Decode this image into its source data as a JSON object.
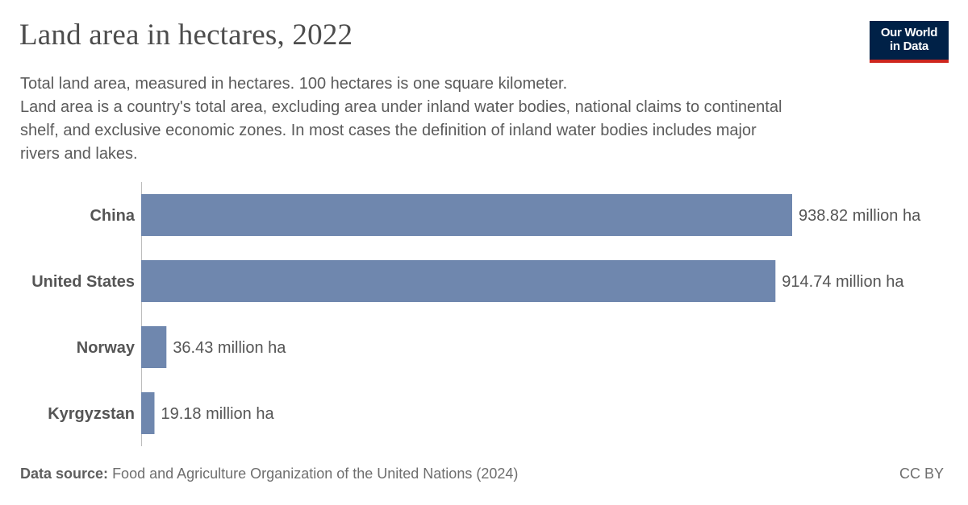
{
  "header": {
    "title": "Land area in hectares, 2022",
    "subtitle_lines": [
      "Total land area, measured in hectares. 100 hectares is one square kilometer.",
      "Land area is a country's total area, excluding area under inland water bodies, national claims to continental",
      "shelf, and exclusive economic zones. In most cases the definition of inland water bodies includes major",
      "rivers and lakes."
    ]
  },
  "logo": {
    "line1": "Our World",
    "line2": "in Data",
    "background": "#002147",
    "accent": "#ce261e"
  },
  "chart_data": {
    "type": "bar",
    "orientation": "horizontal",
    "categories": [
      "China",
      "United States",
      "Norway",
      "Kyrgyzstan"
    ],
    "values": [
      938.82,
      914.74,
      36.43,
      19.18
    ],
    "value_labels": [
      "938.82 million ha",
      "914.74 million ha",
      "36.43 million ha",
      "19.18 million ha"
    ],
    "unit": "million ha",
    "xlim": [
      0,
      938.82
    ],
    "bar_color": "#6f87ae",
    "grid": false
  },
  "footer": {
    "source_label": "Data source:",
    "source_text": "Food and Agriculture Organization of the United Nations (2024)",
    "license": "CC BY"
  }
}
